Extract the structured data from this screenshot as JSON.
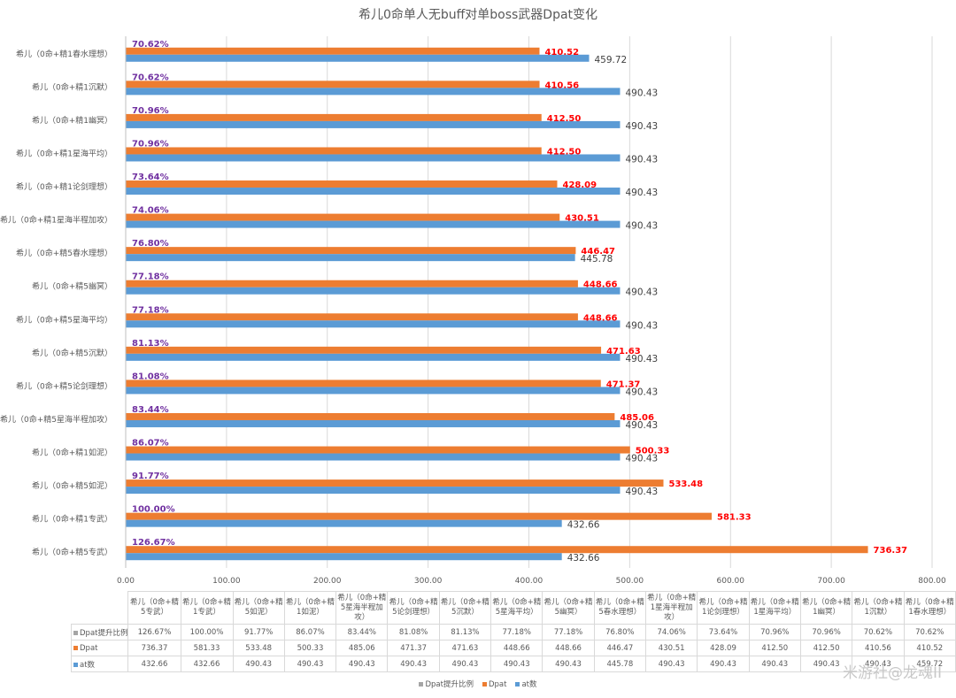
{
  "chart_data": {
    "type": "bar",
    "orientation": "horizontal",
    "title": "希儿0命单人无buff对单boss武器Dpat变化",
    "categories": [
      "希儿（0命+精5专武）",
      "希儿（0命+精1专武）",
      "希儿（0命+精5如泥）",
      "希儿（0命+精1如泥）",
      "希儿（0命+精5星海半程加攻）",
      "希儿（0命+精5论剑理想）",
      "希儿（0命+精5沉默）",
      "希儿（0命+精5星海平均）",
      "希儿（0命+精5幽冥）",
      "希儿（0命+精5春水理想）",
      "希儿（0命+精1星海半程加攻）",
      "希儿（0命+精1论剑理想）",
      "希儿（0命+精1星海平均）",
      "希儿（0命+精1幽冥）",
      "希儿（0命+精1沉默）",
      "希儿（0命+精1春水理想）"
    ],
    "series": [
      {
        "name": "Dpat提升比例",
        "color": "#a5a5a5",
        "labels": [
          "126.67%",
          "100.00%",
          "91.77%",
          "86.07%",
          "83.44%",
          "81.08%",
          "81.13%",
          "77.18%",
          "77.18%",
          "76.80%",
          "74.06%",
          "73.64%",
          "70.96%",
          "70.96%",
          "70.62%",
          "70.62%"
        ],
        "values": [
          126.67,
          100.0,
          91.77,
          86.07,
          83.44,
          81.08,
          81.13,
          77.18,
          77.18,
          76.8,
          74.06,
          73.64,
          70.96,
          70.96,
          70.62,
          70.62
        ],
        "label_color": "#7030a0"
      },
      {
        "name": "Dpat",
        "color": "#ed7d31",
        "labels": [
          "736.37",
          "581.33",
          "533.48",
          "500.33",
          "485.06",
          "471.37",
          "471.63",
          "448.66",
          "448.66",
          "446.47",
          "430.51",
          "428.09",
          "412.50",
          "412.50",
          "410.56",
          "410.52"
        ],
        "values": [
          736.37,
          581.33,
          533.48,
          500.33,
          485.06,
          471.37,
          471.63,
          448.66,
          448.66,
          446.47,
          430.51,
          428.09,
          412.5,
          412.5,
          410.56,
          410.52
        ],
        "label_color": "#ff0000"
      },
      {
        "name": "at数",
        "color": "#5b9bd5",
        "labels": [
          "432.66",
          "432.66",
          "490.43",
          "490.43",
          "490.43",
          "490.43",
          "490.43",
          "490.43",
          "490.43",
          "445.78",
          "490.43",
          "490.43",
          "490.43",
          "490.43",
          "490.43",
          "459.72"
        ],
        "values": [
          432.66,
          432.66,
          490.43,
          490.43,
          490.43,
          490.43,
          490.43,
          490.43,
          490.43,
          445.78,
          490.43,
          490.43,
          490.43,
          490.43,
          490.43,
          459.72
        ],
        "label_color": "#404040"
      }
    ],
    "xlim": [
      0,
      800
    ],
    "x_ticks": [
      "0.00",
      "100.00",
      "200.00",
      "300.00",
      "400.00",
      "500.00",
      "600.00",
      "700.00",
      "800.00"
    ],
    "grid": true,
    "legend_position": "bottom",
    "data_table": true
  },
  "watermark": "米游社@龙魂II"
}
